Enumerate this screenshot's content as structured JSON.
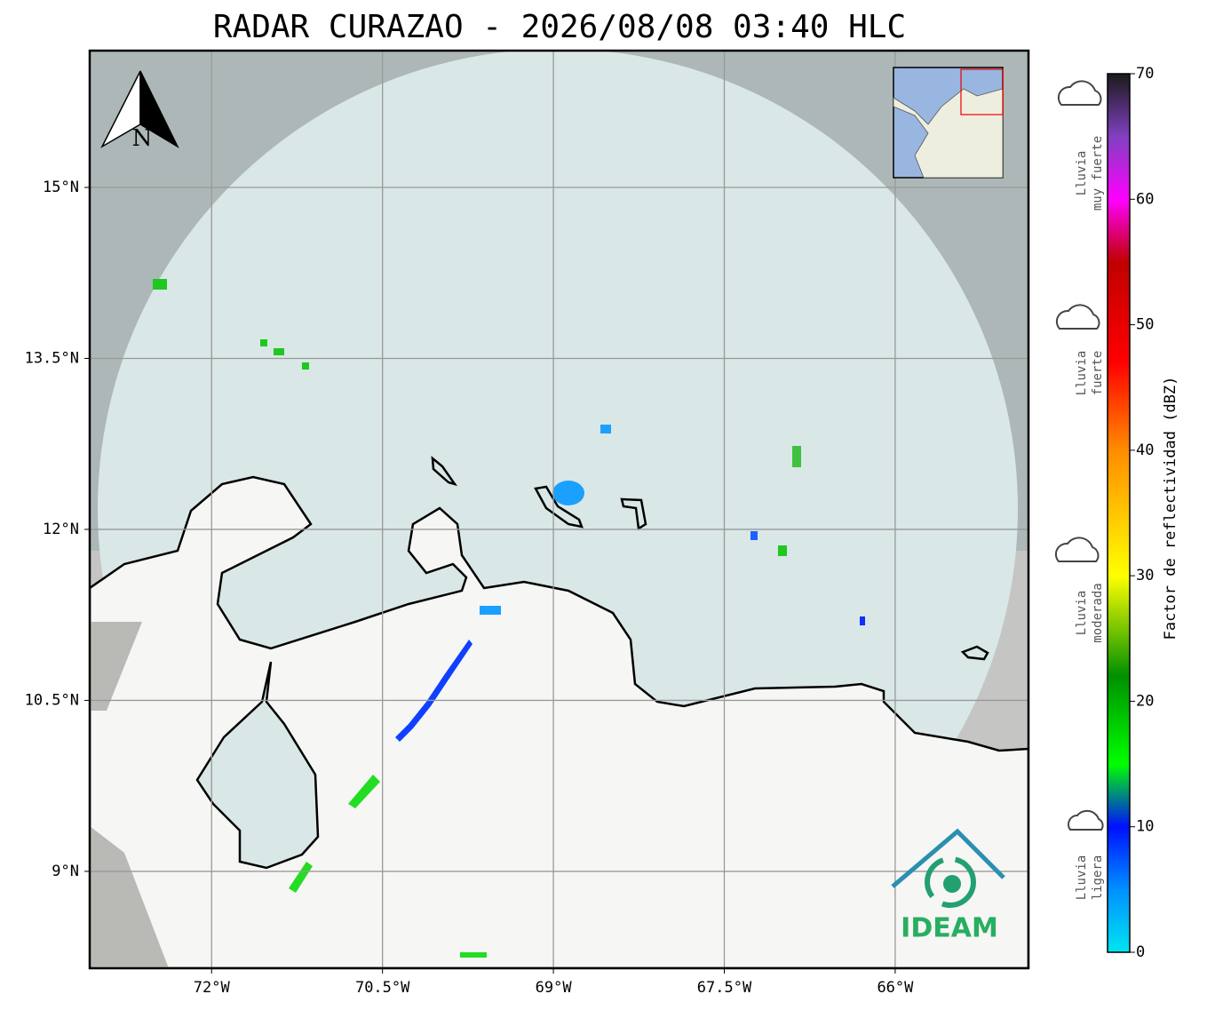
{
  "map": {
    "title": "RADAR CURAZAO - 2026/08/08 03:40 HLC",
    "lon_range": [
      -73.07,
      -64.83
    ],
    "lat_range": [
      8.15,
      16.2
    ],
    "lon_ticks": [
      {
        "value": -72,
        "label": "72°W"
      },
      {
        "value": -70.5,
        "label": "70.5°W"
      },
      {
        "value": -69,
        "label": "69°W"
      },
      {
        "value": -67.5,
        "label": "67.5°W"
      },
      {
        "value": -66,
        "label": "66°W"
      }
    ],
    "lat_ticks": [
      {
        "value": 15,
        "label": "15°N"
      },
      {
        "value": 13.5,
        "label": "13.5°N"
      },
      {
        "value": 12,
        "label": "12°N"
      },
      {
        "value": 10.5,
        "label": "10.5°N"
      },
      {
        "value": 9,
        "label": "9°N"
      }
    ],
    "north_label": "N",
    "logo_text": "IDEAM"
  },
  "colorbar": {
    "label": "Factor de reflectividad (dBZ)",
    "range": [
      0,
      70
    ],
    "ticks": [
      0,
      10,
      20,
      30,
      40,
      50,
      60,
      70
    ],
    "stops": [
      {
        "value": 0,
        "color": "#00e5f0"
      },
      {
        "value": 5,
        "color": "#0090ff"
      },
      {
        "value": 10,
        "color": "#0010ff"
      },
      {
        "value": 15,
        "color": "#00ff00"
      },
      {
        "value": 22,
        "color": "#009000"
      },
      {
        "value": 30,
        "color": "#ffff00"
      },
      {
        "value": 40,
        "color": "#ff8c00"
      },
      {
        "value": 47,
        "color": "#ff0000"
      },
      {
        "value": 55,
        "color": "#c00000"
      },
      {
        "value": 60,
        "color": "#ff00ff"
      },
      {
        "value": 65,
        "color": "#8040c0"
      },
      {
        "value": 70,
        "color": "#1a1a1a"
      }
    ]
  },
  "rain_levels": [
    {
      "line1": "Lluvia",
      "line2": "muy fuerte"
    },
    {
      "line1": "Lluvia",
      "line2": "fuerte"
    },
    {
      "line1": "Lluvia",
      "line2": "moderada"
    },
    {
      "line1": "Lluvia",
      "line2": "ligera"
    }
  ]
}
